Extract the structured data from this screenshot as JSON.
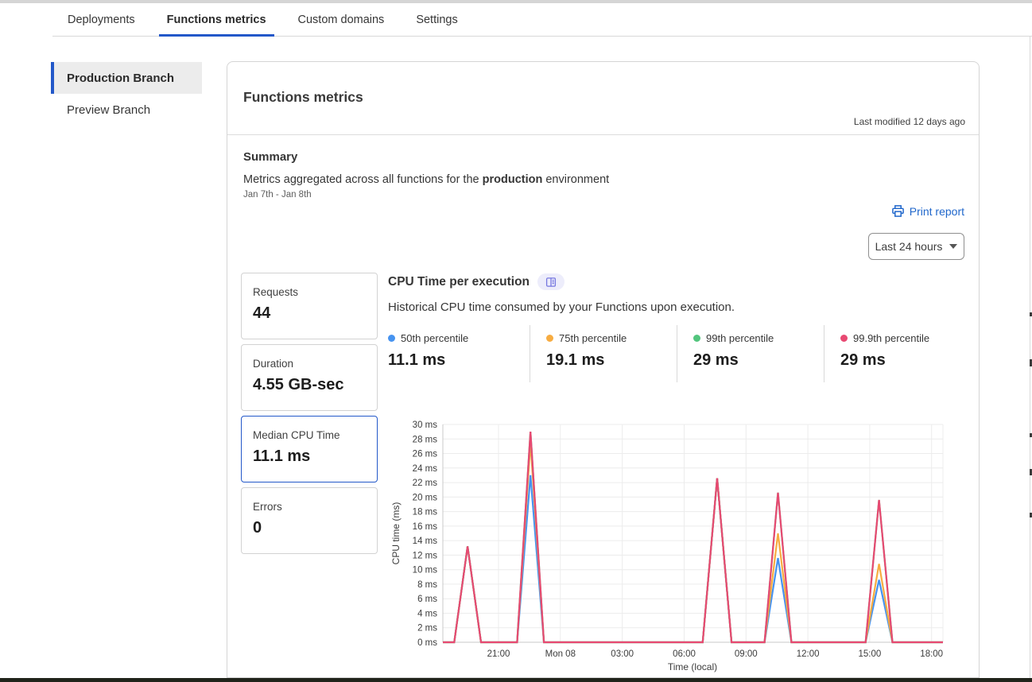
{
  "page": {
    "tabs": [
      {
        "label": "Deployments"
      },
      {
        "label": "Functions metrics"
      },
      {
        "label": "Custom domains"
      },
      {
        "label": "Settings"
      }
    ],
    "sidebar": {
      "items": [
        {
          "label": "Production Branch"
        },
        {
          "label": "Preview Branch"
        }
      ]
    }
  },
  "panel": {
    "title": "Functions metrics",
    "last_modified": "Last modified 12 days ago",
    "summary": {
      "heading": "Summary",
      "description_prefix": "Metrics aggregated across all functions for the ",
      "description_bold": "production",
      "description_suffix": " environment",
      "date_range": "Jan 7th - Jan 8th"
    },
    "print_report_label": "Print report",
    "time_range_label": "Last 24 hours",
    "metric_cards": [
      {
        "label": "Requests",
        "value": "44"
      },
      {
        "label": "Duration",
        "value": "4.55 GB-sec"
      },
      {
        "label": "Median CPU Time",
        "value": "11.1 ms"
      },
      {
        "label": "Errors",
        "value": "0"
      }
    ],
    "chart_section": {
      "title": "CPU Time per execution",
      "doc_icon": "open-book-icon",
      "subtitle": "Historical CPU time consumed by your Functions upon execution.",
      "legend": [
        {
          "label": "50th percentile",
          "value": "11.1 ms",
          "color": "#4693f0"
        },
        {
          "label": "75th percentile",
          "value": "19.1 ms",
          "color": "#f7ac41"
        },
        {
          "label": "99th percentile",
          "value": "29 ms",
          "color": "#52c57d"
        },
        {
          "label": "99.9th percentile",
          "value": "29 ms",
          "color": "#e84972"
        }
      ]
    }
  },
  "chart_data": {
    "type": "line",
    "title": "CPU Time per execution",
    "xlabel": "Time (local)",
    "ylabel": "CPU time (ms)",
    "x_unit": "hours since Jan 7 00:00 local",
    "xlim": [
      18.3,
      42.55
    ],
    "ylim": [
      0,
      30
    ],
    "grid": true,
    "legend_position": "top",
    "y_tick_values": [
      0,
      2,
      4,
      6,
      8,
      10,
      12,
      14,
      16,
      18,
      20,
      22,
      24,
      26,
      28,
      30
    ],
    "y_tick_labels": [
      "0 ms",
      "2 ms",
      "4 ms",
      "6 ms",
      "8 ms",
      "10 ms",
      "12 ms",
      "14 ms",
      "16 ms",
      "18 ms",
      "20 ms",
      "22 ms",
      "24 ms",
      "26 ms",
      "28 ms",
      "30 ms"
    ],
    "x_ticks": [
      {
        "t": 21,
        "label": "21:00"
      },
      {
        "t": 24,
        "label": "Mon 08"
      },
      {
        "t": 27,
        "label": "03:00"
      },
      {
        "t": 30,
        "label": "06:00"
      },
      {
        "t": 33,
        "label": "09:00"
      },
      {
        "t": 36,
        "label": "12:00"
      },
      {
        "t": 39,
        "label": "15:00"
      },
      {
        "t": 42,
        "label": "18:00"
      }
    ],
    "x_hours": [
      18.3,
      18.85,
      19.5,
      20.15,
      21.9,
      22.55,
      23.2,
      30.9,
      31.6,
      32.3,
      33.9,
      34.55,
      35.2,
      38.8,
      39.45,
      40.1,
      42.55
    ],
    "series": [
      {
        "name": "50th percentile",
        "color": "#4693f0",
        "values": [
          0,
          0,
          13.2,
          0,
          0,
          23,
          0,
          0,
          22.6,
          0,
          0,
          11.6,
          0,
          0,
          8.6,
          0,
          0
        ]
      },
      {
        "name": "75th percentile",
        "color": "#f7ac41",
        "values": [
          0,
          0,
          13.2,
          0,
          0,
          27.5,
          0,
          0,
          22.6,
          0,
          0,
          15,
          0,
          0,
          10.8,
          0,
          0
        ]
      },
      {
        "name": "99th percentile",
        "color": "#52c57d",
        "values": [
          0,
          0,
          13.2,
          0,
          0,
          29,
          0,
          0,
          22.6,
          0,
          0,
          20.6,
          0,
          0,
          19.6,
          0,
          0
        ]
      },
      {
        "name": "99.9th percentile",
        "color": "#e84972",
        "values": [
          0,
          0,
          13.2,
          0,
          0,
          29,
          0,
          0,
          22.6,
          0,
          0,
          20.6,
          0,
          0,
          19.6,
          0,
          0
        ]
      }
    ]
  },
  "colors": {
    "accent_blue": "#2358c9",
    "link_blue": "#2067cb",
    "doc_icon_purple": "#7678e0"
  }
}
